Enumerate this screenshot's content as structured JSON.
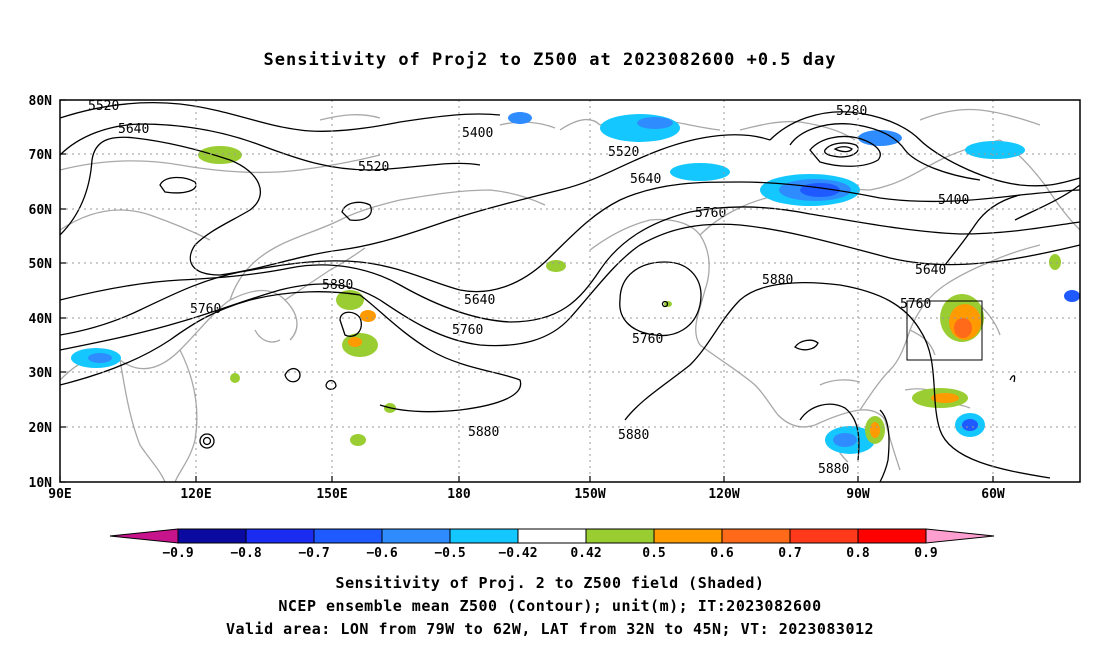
{
  "title": "Sensitivity of Proj2 to Z500 at 2023082600 +0.5 day",
  "lat_labels": [
    "80N",
    "70N",
    "60N",
    "50N",
    "40N",
    "30N",
    "20N",
    "10N"
  ],
  "lon_labels": [
    "90E",
    "120E",
    "150E",
    "180",
    "150W",
    "120W",
    "90W",
    "60W"
  ],
  "contour_labels": {
    "c5520a": "5520",
    "c5640a": "5640",
    "c5520b": "5520",
    "c5400a": "5400",
    "c5280": "5280",
    "c5520c": "5520",
    "c5640b": "5640",
    "c5760a": "5760",
    "c5400b": "5400",
    "c5640c": "5640",
    "c5760b": "5760",
    "c5880a": "5880",
    "c5760c": "5760",
    "c5640d": "5640",
    "c5760d": "5760",
    "c5760e": "5760",
    "c5880b": "5880",
    "c5880c": "5880",
    "c5880d": "5880",
    "c5880e": "5880"
  },
  "colorbar": {
    "labels": [
      "-0.9",
      "-0.8",
      "-0.7",
      "-0.6",
      "-0.5",
      "-0.42",
      "0.42",
      "0.5",
      "0.6",
      "0.7",
      "0.8",
      "0.9"
    ],
    "colors": [
      "#0a0aa0",
      "#1a2cf0",
      "#1e5aff",
      "#2e8cff",
      "#14c8ff",
      "#ffffff",
      "#9acd32",
      "#ff9a00",
      "#ff6a1a",
      "#ff3a1a",
      "#ff0000"
    ],
    "low_extend_color": "#c8148c",
    "high_extend_color": "#ff9fd0"
  },
  "captions": {
    "line1": "Sensitivity of Proj. 2 to Z500 field (Shaded)",
    "line2": "NCEP ensemble mean Z500 (Contour); unit(m); IT:2023082600",
    "line3": "Valid area: LON from 79W to 62W, LAT from 32N to 45N; VT: 2023083012"
  },
  "valid_area": {
    "lon_from": "79W",
    "lon_to": "62W",
    "lat_from": "32N",
    "lat_to": "45N"
  }
}
